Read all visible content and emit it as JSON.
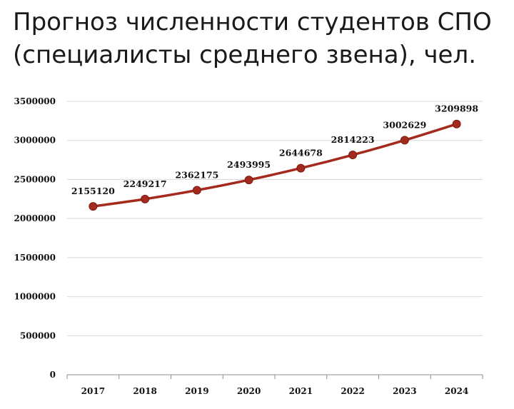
{
  "title": {
    "line1": "Прогноз численности студентов СПО",
    "line2": "(специалисты среднего звена), чел."
  },
  "chart_data": {
    "type": "line",
    "categories": [
      "2017",
      "2018",
      "2019",
      "2020",
      "2021",
      "2022",
      "2023",
      "2024"
    ],
    "series": [
      {
        "values": [
          2155120,
          2249217,
          2362175,
          2493995,
          2644678,
          2814223,
          3002629,
          3209898
        ]
      }
    ],
    "data_labels": [
      "2155120",
      "2249217",
      "2362175",
      "2493995",
      "2644678",
      "2814223",
      "3002629",
      "3209898"
    ],
    "y_ticks": [
      "0",
      "500000",
      "1000000",
      "1500000",
      "2000000",
      "2500000",
      "3000000",
      "3500000"
    ],
    "ylim": [
      0,
      3500000
    ],
    "grid": true,
    "legend": "none",
    "line_color": "#a52a1e",
    "grid_color": "#d9d9d9"
  }
}
